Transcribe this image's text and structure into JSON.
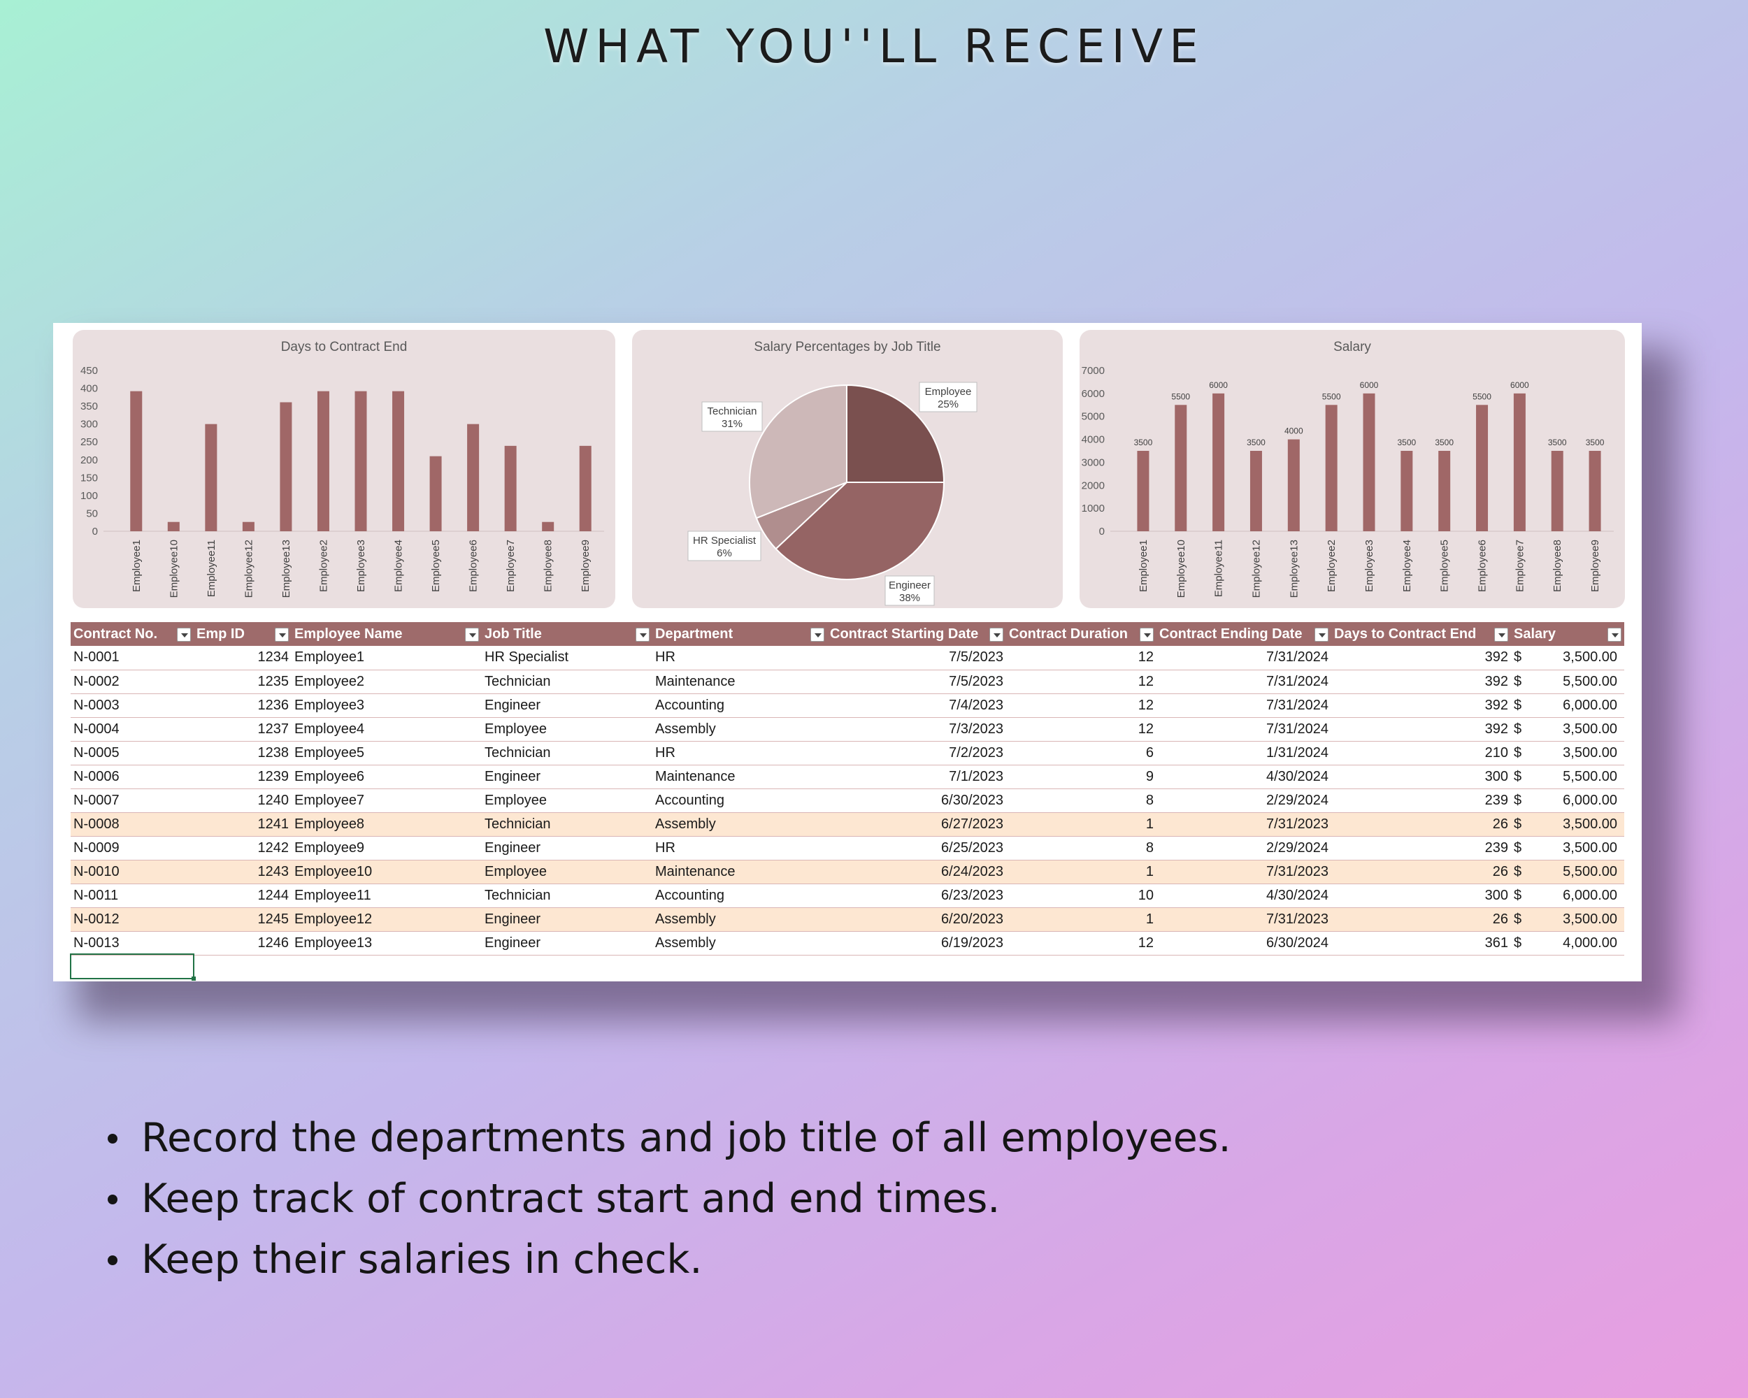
{
  "headline": "WHAT YOU''LL RECEIVE",
  "charts": {
    "colors": {
      "bar": "#a06767",
      "panel": "#eadfe0"
    }
  },
  "chart_data": [
    {
      "type": "bar",
      "title": "Days to Contract End",
      "categories": [
        "Employee1",
        "Employee10",
        "Employee11",
        "Employee12",
        "Employee13",
        "Employee2",
        "Employee3",
        "Employee4",
        "Employee5",
        "Employee6",
        "Employee7",
        "Employee8",
        "Employee9"
      ],
      "values": [
        392,
        26,
        300,
        26,
        361,
        392,
        392,
        392,
        210,
        300,
        239,
        26,
        239
      ],
      "ylim": [
        0,
        450
      ],
      "yticks": [
        0,
        50,
        100,
        150,
        200,
        250,
        300,
        350,
        400,
        450
      ],
      "data_labels": false
    },
    {
      "type": "pie",
      "title": "Salary Percentages by Job Title",
      "slices": [
        {
          "label": "Employee",
          "percent_label": "25%",
          "value": 25,
          "color": "#7a504f"
        },
        {
          "label": "Engineer",
          "percent_label": "38%",
          "value": 38,
          "color": "#956464"
        },
        {
          "label": "HR Specialist",
          "percent_label": "6%",
          "value": 6,
          "color": "#b08e8e"
        },
        {
          "label": "Technician",
          "percent_label": "31%",
          "value": 31,
          "color": "#cdb8b8"
        }
      ]
    },
    {
      "type": "bar",
      "title": "Salary",
      "categories": [
        "Employee1",
        "Employee10",
        "Employee11",
        "Employee12",
        "Employee13",
        "Employee2",
        "Employee3",
        "Employee4",
        "Employee5",
        "Employee6",
        "Employee7",
        "Employee8",
        "Employee9"
      ],
      "values": [
        3500,
        5500,
        6000,
        3500,
        4000,
        5500,
        6000,
        3500,
        3500,
        5500,
        6000,
        3500,
        3500
      ],
      "ylim": [
        0,
        7000
      ],
      "yticks": [
        0,
        1000,
        2000,
        3000,
        4000,
        5000,
        6000,
        7000
      ],
      "data_labels": true
    }
  ],
  "table": {
    "columns": [
      "Contract No.",
      "Emp ID",
      "Employee Name",
      "Job Title",
      "Department",
      "Contract Starting Date",
      "Contract Duration",
      "Contract Ending Date",
      "Days to Contract End",
      "Salary"
    ],
    "rows": [
      {
        "no": "N-0001",
        "id": "1234",
        "name": "Employee1",
        "title": "HR Specialist",
        "dept": "HR",
        "start": "7/5/2023",
        "dur": "12",
        "end": "7/31/2024",
        "days": "392",
        "cur": "$",
        "salary": "3,500.00",
        "hl": false
      },
      {
        "no": "N-0002",
        "id": "1235",
        "name": "Employee2",
        "title": "Technician",
        "dept": "Maintenance",
        "start": "7/5/2023",
        "dur": "12",
        "end": "7/31/2024",
        "days": "392",
        "cur": "$",
        "salary": "5,500.00",
        "hl": false
      },
      {
        "no": "N-0003",
        "id": "1236",
        "name": "Employee3",
        "title": "Engineer",
        "dept": "Accounting",
        "start": "7/4/2023",
        "dur": "12",
        "end": "7/31/2024",
        "days": "392",
        "cur": "$",
        "salary": "6,000.00",
        "hl": false
      },
      {
        "no": "N-0004",
        "id": "1237",
        "name": "Employee4",
        "title": "Employee",
        "dept": "Assembly",
        "start": "7/3/2023",
        "dur": "12",
        "end": "7/31/2024",
        "days": "392",
        "cur": "$",
        "salary": "3,500.00",
        "hl": false
      },
      {
        "no": "N-0005",
        "id": "1238",
        "name": "Employee5",
        "title": "Technician",
        "dept": "HR",
        "start": "7/2/2023",
        "dur": "6",
        "end": "1/31/2024",
        "days": "210",
        "cur": "$",
        "salary": "3,500.00",
        "hl": false
      },
      {
        "no": "N-0006",
        "id": "1239",
        "name": "Employee6",
        "title": "Engineer",
        "dept": "Maintenance",
        "start": "7/1/2023",
        "dur": "9",
        "end": "4/30/2024",
        "days": "300",
        "cur": "$",
        "salary": "5,500.00",
        "hl": false
      },
      {
        "no": "N-0007",
        "id": "1240",
        "name": "Employee7",
        "title": "Employee",
        "dept": "Accounting",
        "start": "6/30/2023",
        "dur": "8",
        "end": "2/29/2024",
        "days": "239",
        "cur": "$",
        "salary": "6,000.00",
        "hl": false
      },
      {
        "no": "N-0008",
        "id": "1241",
        "name": "Employee8",
        "title": "Technician",
        "dept": "Assembly",
        "start": "6/27/2023",
        "dur": "1",
        "end": "7/31/2023",
        "days": "26",
        "cur": "$",
        "salary": "3,500.00",
        "hl": true
      },
      {
        "no": "N-0009",
        "id": "1242",
        "name": "Employee9",
        "title": "Engineer",
        "dept": "HR",
        "start": "6/25/2023",
        "dur": "8",
        "end": "2/29/2024",
        "days": "239",
        "cur": "$",
        "salary": "3,500.00",
        "hl": false
      },
      {
        "no": "N-0010",
        "id": "1243",
        "name": "Employee10",
        "title": "Employee",
        "dept": "Maintenance",
        "start": "6/24/2023",
        "dur": "1",
        "end": "7/31/2023",
        "days": "26",
        "cur": "$",
        "salary": "5,500.00",
        "hl": true
      },
      {
        "no": "N-0011",
        "id": "1244",
        "name": "Employee11",
        "title": "Technician",
        "dept": "Accounting",
        "start": "6/23/2023",
        "dur": "10",
        "end": "4/30/2024",
        "days": "300",
        "cur": "$",
        "salary": "6,000.00",
        "hl": false
      },
      {
        "no": "N-0012",
        "id": "1245",
        "name": "Employee12",
        "title": "Engineer",
        "dept": "Assembly",
        "start": "6/20/2023",
        "dur": "1",
        "end": "7/31/2023",
        "days": "26",
        "cur": "$",
        "salary": "3,500.00",
        "hl": true
      },
      {
        "no": "N-0013",
        "id": "1246",
        "name": "Employee13",
        "title": "Engineer",
        "dept": "Assembly",
        "start": "6/19/2023",
        "dur": "12",
        "end": "6/30/2024",
        "days": "361",
        "cur": "$",
        "salary": "4,000.00",
        "hl": false
      }
    ]
  },
  "bullets": [
    "Record the departments and job title of all employees.",
    "Keep track of contract start and end times.",
    "Keep their salaries in check."
  ]
}
